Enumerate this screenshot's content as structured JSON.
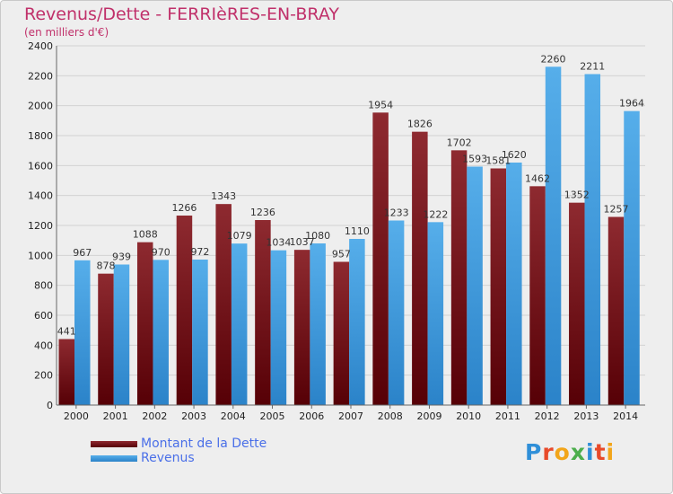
{
  "title": "Revenus/Dette - FERRIèRES-EN-BRAY",
  "subtitle": "(en milliers d'€)",
  "logo_text": "Proxiti",
  "colors": {
    "dette": "#6e1218",
    "revenus": "#3a97de",
    "title": "#c0306a",
    "legend_text": "#4a6fe8"
  },
  "chart_data": {
    "type": "bar",
    "categories": [
      "2000",
      "2001",
      "2002",
      "2003",
      "2004",
      "2005",
      "2006",
      "2007",
      "2008",
      "2009",
      "2010",
      "2011",
      "2012",
      "2013",
      "2014"
    ],
    "series": [
      {
        "name": "Montant de la Dette",
        "values": [
          441,
          878,
          1088,
          1266,
          1343,
          1236,
          1037,
          957,
          1954,
          1826,
          1702,
          1581,
          1462,
          1352,
          1257
        ],
        "labels": [
          "441",
          "878",
          "1088",
          "1266",
          "1343",
          "1236",
          "1037",
          "957",
          "1954",
          "1826",
          "1702",
          "1581",
          "1462",
          "1352",
          "1257"
        ]
      },
      {
        "name": "Revenus",
        "values": [
          967,
          939,
          970,
          972,
          1079,
          1034,
          1080,
          1110,
          1233,
          1222,
          1593,
          1620,
          2260,
          2211,
          1964
        ],
        "labels": [
          "967",
          "939",
          "970",
          "972",
          "1079",
          "1034",
          "1080",
          "1110",
          "1233",
          "1222",
          "1593",
          "1620",
          "2260",
          "2211",
          "1964"
        ]
      }
    ],
    "yticks": [
      0,
      200,
      400,
      600,
      800,
      1000,
      1200,
      1400,
      1600,
      1800,
      2000,
      2200,
      2400
    ],
    "ylim": [
      0,
      2400
    ],
    "grid": true,
    "legend": "bottom-left"
  }
}
